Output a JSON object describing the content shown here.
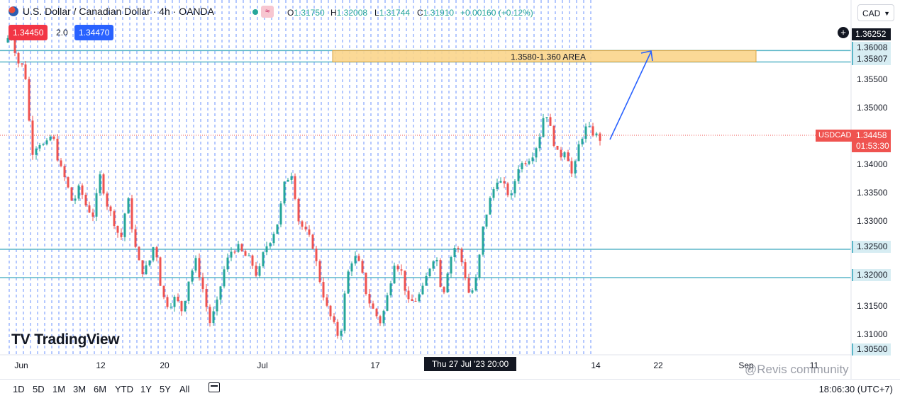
{
  "header": {
    "symbol_title": "U.S. Dollar / Canadian Dollar · 4h · OANDA",
    "ohlc": [
      {
        "label": "O",
        "value": "1.31750"
      },
      {
        "label": "H",
        "value": "1.32008"
      },
      {
        "label": "L",
        "value": "1.31744"
      },
      {
        "label": "C",
        "value": "1.31910"
      },
      {
        "label": "",
        "value": "+0.00160 (+0.12%)"
      }
    ],
    "sell_price": "1.34450",
    "spread": "2.0",
    "buy_price": "1.34470",
    "currency": "CAD"
  },
  "axis_tags": {
    "crosshair_price": "1.36252",
    "zone_top": "1.36008",
    "zone_bottom": "1.35807",
    "level_1": "1.32500",
    "level_2": "1.32000",
    "bottom_level": "1.30500",
    "current_price": "1.34458",
    "countdown": "01:53:30",
    "pair": "USDCAD"
  },
  "crosshair_date": "Thu 27 Jul '23   20:00",
  "logo_text": "TradingView",
  "watermark": "@Revis community",
  "colors": {
    "up": "#26a69a",
    "down": "#ef5350",
    "level": "#5ab6c8",
    "zone": "#fbd58b",
    "arrow": "#2962ff",
    "grid_dash": "#2962ff"
  },
  "bottom_bar": {
    "ranges": [
      "1D",
      "5D",
      "1M",
      "3M",
      "6M",
      "YTD",
      "1Y",
      "5Y",
      "All"
    ],
    "clock": "18:06:30 (UTC+7)"
  },
  "chart_data": {
    "type": "candlestick",
    "title": "U.S. Dollar / Canadian Dollar · 4h · OANDA",
    "y_ticks": [
      1.355,
      1.35,
      1.34,
      1.335,
      1.33,
      1.315,
      1.31
    ],
    "y_tick_labels": [
      "1.35500",
      "1.35000",
      "1.34000",
      "1.33500",
      "1.33000",
      "1.31500",
      "1.31000"
    ],
    "x_ticks": [
      "Jun",
      "12",
      "20",
      "Jul",
      "17",
      "14",
      "22",
      "Sep",
      "11"
    ],
    "ylim": [
      1.3035,
      1.3665
    ],
    "horizontal_levels": [
      1.36008,
      1.35807,
      1.325,
      1.32
    ],
    "zone": {
      "label": "1.3580-1.360 AREA",
      "low": 1.35807,
      "high": 1.36008
    },
    "current_price": 1.34458,
    "price_path": [
      1.3615,
      1.363,
      1.358,
      1.357,
      1.342,
      1.344,
      1.343,
      1.3455,
      1.34,
      1.337,
      1.333,
      1.336,
      1.3325,
      1.331,
      1.338,
      1.333,
      1.33,
      1.3265,
      1.3345,
      1.326,
      1.321,
      1.322,
      1.3265,
      1.317,
      1.315,
      1.3165,
      1.314,
      1.32,
      1.323,
      1.318,
      1.312,
      1.315,
      1.321,
      1.3245,
      1.3255,
      1.324,
      1.323,
      1.32,
      1.325,
      1.327,
      1.33,
      1.337,
      1.3385,
      1.33,
      1.328,
      1.326,
      1.32,
      1.315,
      1.312,
      1.309,
      1.32,
      1.324,
      1.322,
      1.3165,
      1.314,
      1.312,
      1.317,
      1.323,
      1.321,
      1.3155,
      1.316,
      1.3175,
      1.3215,
      1.3245,
      1.3165,
      1.323,
      1.326,
      1.322,
      1.3165,
      1.32,
      1.3295,
      1.334,
      1.3375,
      1.336,
      1.334,
      1.3395,
      1.3405,
      1.3415,
      1.344,
      1.35,
      1.345,
      1.341,
      1.343,
      1.3375,
      1.344,
      1.3465,
      1.3455,
      1.3445
    ]
  }
}
